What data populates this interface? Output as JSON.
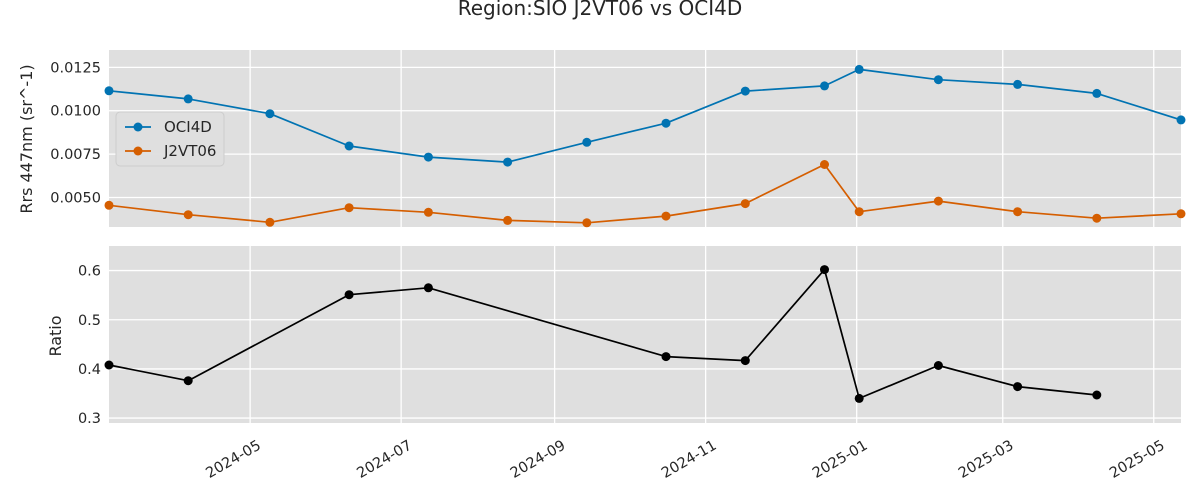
{
  "chart_data": [
    {
      "type": "line",
      "title": "Region:SIO J2VT06 vs OCI4D",
      "ylabel": "Rrs 447nm (sr^-1)",
      "xlim": [
        "2024-03-05",
        "2025-05-12"
      ],
      "ylim": [
        0.0033,
        0.0135
      ],
      "yticks": [
        0.005,
        0.0075,
        0.01,
        0.0125
      ],
      "ytick_labels": [
        "0.0050",
        "0.0075",
        "0.0100",
        "0.0125"
      ],
      "grid": true,
      "legend_position": "center-left",
      "series": [
        {
          "name": "OCI4D",
          "color": "#0173b2",
          "points": [
            {
              "x": "2024-03-05",
              "y": 0.01115
            },
            {
              "x": "2024-04-06",
              "y": 0.01068
            },
            {
              "x": "2024-05-09",
              "y": 0.00983
            },
            {
              "x": "2024-06-10",
              "y": 0.00797
            },
            {
              "x": "2024-07-12",
              "y": 0.00733
            },
            {
              "x": "2024-08-13",
              "y": 0.00704
            },
            {
              "x": "2024-09-14",
              "y": 0.00818
            },
            {
              "x": "2024-10-16",
              "y": 0.00928
            },
            {
              "x": "2024-11-17",
              "y": 0.01113
            },
            {
              "x": "2024-12-19",
              "y": 0.01143
            },
            {
              "x": "2025-01-02",
              "y": 0.01238
            },
            {
              "x": "2025-02-03",
              "y": 0.01179
            },
            {
              "x": "2025-03-07",
              "y": 0.01152
            },
            {
              "x": "2025-04-08",
              "y": 0.011
            },
            {
              "x": "2025-05-12",
              "y": 0.00947
            }
          ]
        },
        {
          "name": "J2VT06",
          "color": "#d55e00",
          "points": [
            {
              "x": "2024-03-05",
              "y": 0.00455
            },
            {
              "x": "2024-04-06",
              "y": 0.00401
            },
            {
              "x": "2024-05-09",
              "y": 0.00357
            },
            {
              "x": "2024-06-10",
              "y": 0.00441
            },
            {
              "x": "2024-07-12",
              "y": 0.00415
            },
            {
              "x": "2024-08-13",
              "y": 0.00368
            },
            {
              "x": "2024-09-14",
              "y": 0.00354
            },
            {
              "x": "2024-10-16",
              "y": 0.00393
            },
            {
              "x": "2024-11-17",
              "y": 0.00465
            },
            {
              "x": "2024-12-19",
              "y": 0.0069
            },
            {
              "x": "2025-01-02",
              "y": 0.00418
            },
            {
              "x": "2025-02-03",
              "y": 0.00479
            },
            {
              "x": "2025-03-07",
              "y": 0.00418
            },
            {
              "x": "2025-04-08",
              "y": 0.00381
            },
            {
              "x": "2025-05-12",
              "y": 0.00406
            }
          ]
        }
      ]
    },
    {
      "type": "line",
      "ylabel": "Ratio",
      "xlim": [
        "2024-03-05",
        "2025-05-12"
      ],
      "ylim": [
        0.29,
        0.65
      ],
      "yticks": [
        0.3,
        0.4,
        0.5,
        0.6
      ],
      "ytick_labels": [
        "0.3",
        "0.4",
        "0.5",
        "0.6"
      ],
      "xticks": [
        "2024-05-01",
        "2024-07-01",
        "2024-09-01",
        "2024-11-01",
        "2025-01-01",
        "2025-03-01",
        "2025-05-01"
      ],
      "xtick_labels": [
        "2024-05",
        "2024-07",
        "2024-09",
        "2024-11",
        "2025-01",
        "2025-03",
        "2025-05"
      ],
      "grid": true,
      "series": [
        {
          "color": "#000000",
          "points": [
            {
              "x": "2024-03-05",
              "y": 0.408
            },
            {
              "x": "2024-04-06",
              "y": 0.376
            },
            {
              "x": "2024-06-10",
              "y": 0.551
            },
            {
              "x": "2024-07-12",
              "y": 0.565
            },
            {
              "x": "2024-10-16",
              "y": 0.425
            },
            {
              "x": "2024-11-17",
              "y": 0.417
            },
            {
              "x": "2024-12-19",
              "y": 0.602
            },
            {
              "x": "2025-01-02",
              "y": 0.34
            },
            {
              "x": "2025-02-03",
              "y": 0.407
            },
            {
              "x": "2025-03-07",
              "y": 0.364
            },
            {
              "x": "2025-04-08",
              "y": 0.347
            }
          ]
        }
      ]
    }
  ]
}
